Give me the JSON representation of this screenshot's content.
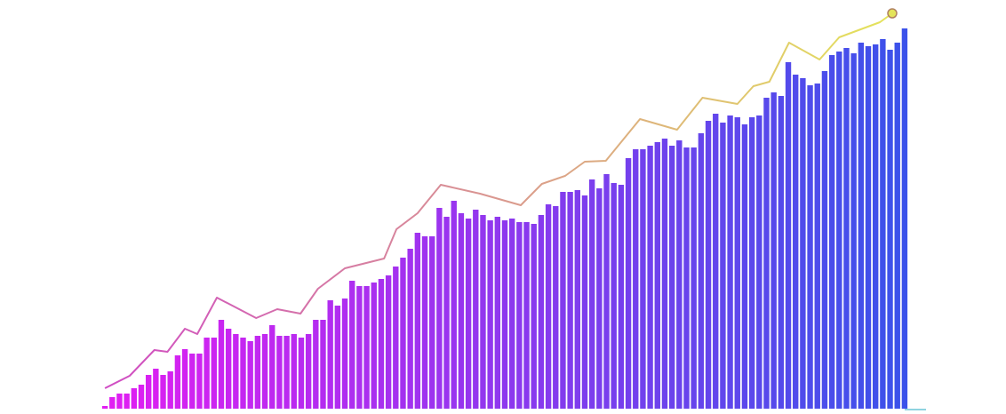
{
  "chart_data": {
    "type": "bar",
    "x": [
      0,
      1,
      2,
      3,
      4,
      5,
      6,
      7,
      8,
      9,
      10,
      11,
      12,
      13,
      14,
      15,
      16,
      17,
      18,
      19,
      20,
      21,
      22,
      23,
      24,
      25,
      26,
      27,
      28,
      29,
      30,
      31,
      32,
      33,
      34,
      35,
      36,
      37,
      38,
      39,
      40,
      41,
      42,
      43,
      44,
      45,
      46,
      47,
      48,
      49,
      50,
      51,
      52,
      53,
      54,
      55,
      56,
      57,
      58,
      59,
      60,
      61,
      62,
      63,
      64,
      65,
      66,
      67,
      68,
      69,
      70,
      71,
      72,
      73,
      74,
      75,
      76,
      77,
      78,
      79,
      80,
      81,
      82,
      83,
      84,
      85,
      86,
      87,
      88,
      89,
      90,
      91,
      92,
      93,
      94,
      95,
      96,
      97,
      98,
      99,
      100,
      101,
      102,
      103,
      104,
      105,
      106,
      107,
      108,
      109,
      110
    ],
    "values": [
      3,
      13,
      17,
      17,
      23,
      27,
      38,
      45,
      38,
      42,
      60,
      67,
      62,
      62,
      80,
      80,
      100,
      90,
      84,
      80,
      76,
      82,
      84,
      94,
      82,
      82,
      84,
      80,
      84,
      100,
      100,
      122,
      116,
      124,
      144,
      138,
      138,
      142,
      146,
      150,
      160,
      170,
      180,
      198,
      194,
      194,
      226,
      216,
      234,
      220,
      214,
      224,
      218,
      212,
      216,
      212,
      214,
      210,
      210,
      208,
      218,
      230,
      228,
      244,
      244,
      246,
      240,
      258,
      248,
      264,
      254,
      252,
      282,
      292,
      292,
      296,
      300,
      304,
      296,
      302,
      294,
      294,
      310,
      324,
      332,
      322,
      330,
      328,
      320,
      328,
      330,
      350,
      356,
      352,
      390,
      376,
      372,
      364,
      366,
      380,
      398,
      402,
      406,
      400,
      412,
      408,
      410,
      416,
      404,
      412,
      428
    ],
    "colors": [
      "#e21ef2",
      "#3a52ea"
    ],
    "line": {
      "x": [
        0,
        3.4,
        6.8,
        8.6,
        11,
        12.7,
        15.4,
        20.8,
        23.7,
        26.9,
        29.3,
        33,
        38.4,
        40.1,
        43,
        46.2,
        51.6,
        57.2,
        60.1,
        63.3,
        66,
        68.9,
        73.6,
        78.7,
        82.2,
        87,
        89.2,
        91.4,
        94.1,
        98.3,
        101,
        106.6,
        108.3
      ],
      "values": [
        23,
        37,
        66,
        64,
        90,
        84,
        125,
        102,
        112,
        107,
        135,
        158,
        169,
        202,
        220,
        252,
        242,
        229,
        253,
        262,
        278,
        279,
        326,
        314,
        350,
        343,
        363,
        368,
        412,
        393,
        418,
        435,
        445
      ],
      "colors": [
        "#d04cc4",
        "#e4e45a"
      ]
    },
    "xlim": [
      -0.5,
      110.5
    ],
    "ylim": [
      0,
      450
    ]
  }
}
